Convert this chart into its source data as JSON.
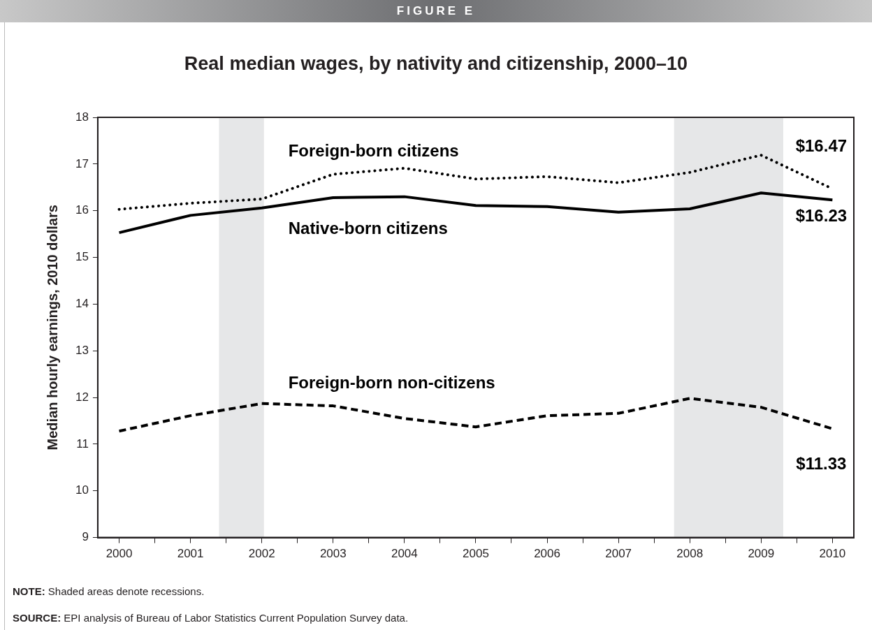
{
  "chart_data": {
    "type": "line",
    "subtitle": "FIGURE E",
    "title": "Real median wages, by nativity and citizenship, 2000–10",
    "ylabel": "Median hourly earnings, 2010 dollars",
    "x": [
      2000,
      2001,
      2002,
      2003,
      2004,
      2005,
      2006,
      2007,
      2008,
      2009,
      2010
    ],
    "xlim": [
      1999.7,
      2010.3
    ],
    "xticks": [
      2000,
      {
        "value": 2000.5,
        "label": null
      },
      2001,
      {
        "value": 2001.5,
        "label": null
      },
      2002,
      {
        "value": 2002.5,
        "label": null
      },
      2003,
      {
        "value": 2003.5,
        "label": null
      },
      2004,
      {
        "value": 2004.5,
        "label": null
      },
      2005,
      {
        "value": 2005.5,
        "label": null
      },
      2006,
      {
        "value": 2006.5,
        "label": null
      },
      2007,
      {
        "value": 2007.5,
        "label": null
      },
      2008,
      {
        "value": 2008.5,
        "label": null
      },
      2009,
      {
        "value": 2009.5,
        "label": null
      },
      2010
    ],
    "ylim": [
      9,
      18
    ],
    "yticks": [
      9,
      10,
      11,
      12,
      13,
      14,
      15,
      16,
      17,
      18
    ],
    "series": [
      {
        "name": "Foreign-born citizens",
        "color": "#000000",
        "line_style": "dotted",
        "values": [
          16.03,
          16.16,
          16.25,
          16.78,
          16.91,
          16.68,
          16.73,
          16.6,
          16.82,
          17.19,
          16.47
        ],
        "value_labels": [
          null,
          null,
          null,
          null,
          null,
          null,
          null,
          null,
          null,
          null,
          "$16.47"
        ]
      },
      {
        "name": "Native-born citizens",
        "color": "#000000",
        "line_style": "solid",
        "values": [
          15.53,
          15.9,
          16.06,
          16.28,
          16.3,
          16.11,
          16.09,
          15.97,
          16.04,
          16.38,
          16.23
        ],
        "value_labels": [
          null,
          null,
          null,
          null,
          null,
          null,
          null,
          null,
          null,
          null,
          "$16.23"
        ]
      },
      {
        "name": "Foreign-born non-citizens",
        "color": "#000000",
        "line_style": "dashed",
        "values": [
          11.28,
          11.61,
          11.87,
          11.82,
          11.55,
          11.37,
          11.61,
          11.66,
          11.98,
          11.79,
          11.33
        ],
        "value_labels": [
          null,
          null,
          null,
          null,
          null,
          null,
          null,
          null,
          null,
          null,
          "$11.33"
        ]
      }
    ],
    "bands": [
      {
        "axis": "x",
        "from": 2001.4,
        "to": 2002.03,
        "color": "#e6e7e8"
      },
      {
        "axis": "x",
        "from": 2007.78,
        "to": 2009.31,
        "color": "#e6e7e8"
      }
    ],
    "grid": false,
    "legend": false,
    "marker": "none",
    "annotations": [
      "NOTE: Shaded areas denote recessions.",
      "SOURCE: EPI analysis of Bureau of Labor Statistics Current Population Survey data."
    ]
  }
}
